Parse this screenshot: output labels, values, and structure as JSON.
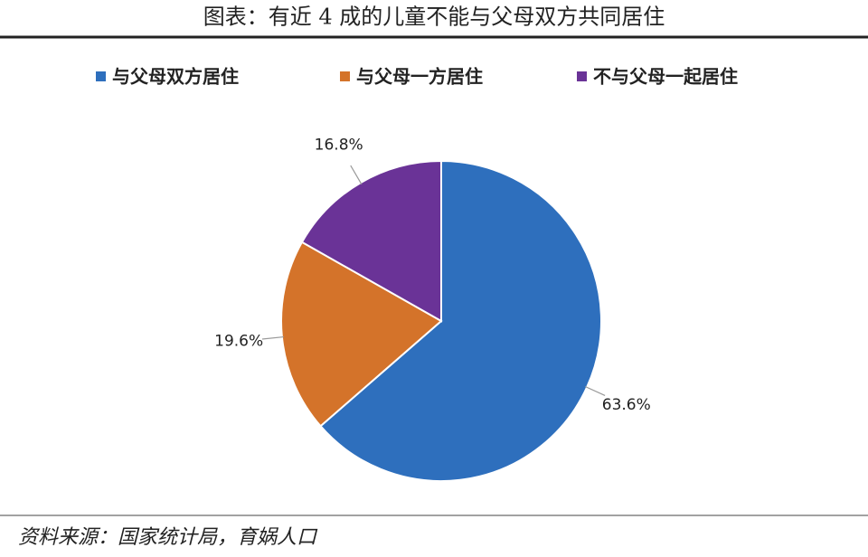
{
  "chart_data": {
    "type": "pie",
    "title": "图表：有近 4 成的儿童不能与父母双方共同居住",
    "categories": [
      "与父母双方居住",
      "与父母一方居住",
      "不与父母一起居住"
    ],
    "values": [
      63.6,
      19.6,
      16.8
    ],
    "value_labels": [
      "63.6%",
      "19.6%",
      "16.8%"
    ],
    "colors": [
      "#2e6fbd",
      "#d4732a",
      "#6a3397"
    ],
    "legend": "top",
    "source": "资料来源：国家统计局，育娲人口"
  }
}
